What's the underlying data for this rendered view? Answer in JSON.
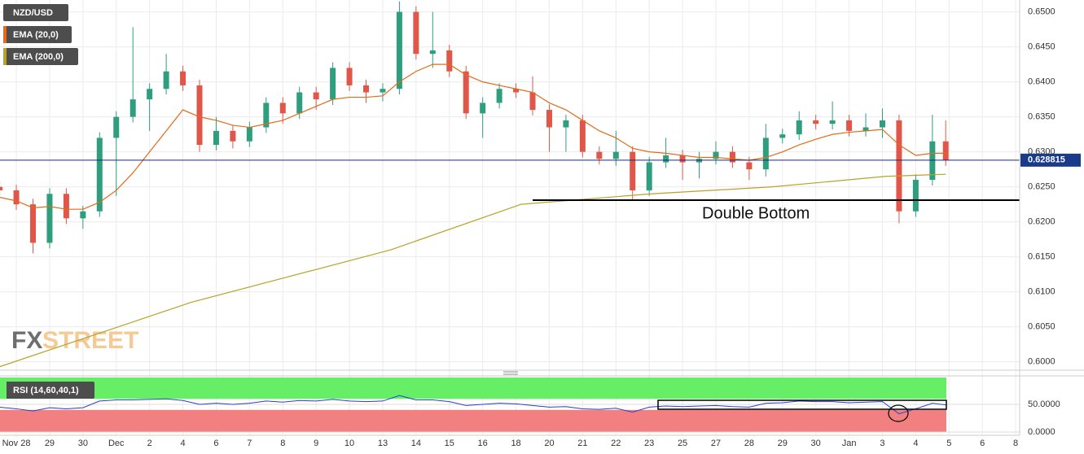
{
  "chart_data": {
    "type": "candlestick",
    "symbol": "NZD/USD",
    "grid": true,
    "x_labels": [
      "Nov 28",
      "29",
      "30",
      "Dec",
      "2",
      "4",
      "6",
      "7",
      "8",
      "9",
      "10",
      "13",
      "14",
      "15",
      "16",
      "18",
      "20",
      "21",
      "22",
      "23",
      "25",
      "27",
      "28",
      "29",
      "30",
      "Jan",
      "3",
      "4",
      "5",
      "6",
      "8"
    ],
    "xlim": [
      -0.49,
      30.12
    ],
    "ylim": [
      0.5988,
      0.6517
    ],
    "yticks": [
      {
        "value": 0.65,
        "label": "0.6500"
      },
      {
        "value": 0.645,
        "label": "0.6450"
      },
      {
        "value": 0.64,
        "label": "0.6400"
      },
      {
        "value": 0.635,
        "label": "0.6350"
      },
      {
        "value": 0.63,
        "label": "0.6300"
      },
      {
        "value": 0.625,
        "label": "0.6250"
      },
      {
        "value": 0.62,
        "label": "0.6200"
      },
      {
        "value": 0.615,
        "label": "0.6150"
      },
      {
        "value": 0.61,
        "label": "0.6100"
      },
      {
        "value": 0.605,
        "label": "0.6050"
      },
      {
        "value": 0.6,
        "label": "0.6000"
      }
    ],
    "candles": {
      "up_color": "#2e9e7e",
      "down_color": "#e0574a",
      "x": [
        -0.5,
        0,
        0.5,
        1,
        1.5,
        2,
        2.5,
        3,
        3.5,
        4,
        4.5,
        5,
        5.5,
        6,
        6.5,
        7,
        7.5,
        8,
        8.5,
        9,
        9.5,
        10,
        10.5,
        11,
        11.5,
        12,
        12.5,
        13,
        13.5,
        14,
        14.5,
        15,
        15.5,
        16,
        16.5,
        17,
        17.5,
        18,
        18.5,
        19,
        19.5,
        20,
        20.5,
        21,
        21.5,
        22,
        22.5,
        23,
        23.5,
        24,
        24.5,
        25,
        25.5,
        26,
        26.5,
        27,
        27.5,
        27.9
      ],
      "open": [
        0.625,
        0.6245,
        0.6225,
        0.617,
        0.624,
        0.6205,
        0.6215,
        0.632,
        0.635,
        0.6375,
        0.639,
        0.6415,
        0.6395,
        0.631,
        0.633,
        0.6315,
        0.6335,
        0.637,
        0.6355,
        0.6385,
        0.6375,
        0.642,
        0.6395,
        0.6385,
        0.639,
        0.65,
        0.644,
        0.6445,
        0.6415,
        0.6355,
        0.637,
        0.639,
        0.6385,
        0.636,
        0.6335,
        0.6345,
        0.63,
        0.629,
        0.63,
        0.6245,
        0.6285,
        0.6295,
        0.6285,
        0.629,
        0.63,
        0.6285,
        0.6275,
        0.632,
        0.6325,
        0.6345,
        0.634,
        0.6345,
        0.633,
        0.6335,
        0.6345,
        0.6215,
        0.626,
        0.6315
      ],
      "high": [
        0.6258,
        0.6253,
        0.6233,
        0.6248,
        0.6248,
        0.6223,
        0.6328,
        0.6358,
        0.6478,
        0.6398,
        0.644,
        0.6423,
        0.6403,
        0.635,
        0.6338,
        0.6343,
        0.6378,
        0.6378,
        0.6393,
        0.6393,
        0.6428,
        0.6428,
        0.6403,
        0.6398,
        0.6515,
        0.6508,
        0.65,
        0.6453,
        0.6423,
        0.6378,
        0.6398,
        0.6398,
        0.6408,
        0.6368,
        0.6353,
        0.6353,
        0.6308,
        0.633,
        0.6308,
        0.6293,
        0.632,
        0.6303,
        0.63,
        0.6315,
        0.6308,
        0.6293,
        0.634,
        0.6333,
        0.6358,
        0.6353,
        0.6372,
        0.6353,
        0.6355,
        0.6362,
        0.6353,
        0.6268,
        0.6353,
        0.6345
      ],
      "low": [
        0.6237,
        0.6217,
        0.6155,
        0.6162,
        0.6197,
        0.619,
        0.6207,
        0.6237,
        0.6342,
        0.633,
        0.6382,
        0.6387,
        0.63,
        0.6302,
        0.6305,
        0.6307,
        0.6327,
        0.634,
        0.6347,
        0.636,
        0.6367,
        0.6387,
        0.637,
        0.6372,
        0.6382,
        0.6432,
        0.642,
        0.6407,
        0.6347,
        0.632,
        0.6362,
        0.6377,
        0.6352,
        0.63,
        0.63,
        0.6292,
        0.6282,
        0.628,
        0.6232,
        0.6237,
        0.6277,
        0.626,
        0.6262,
        0.6282,
        0.6277,
        0.626,
        0.6265,
        0.6312,
        0.6317,
        0.6332,
        0.6332,
        0.6322,
        0.6322,
        0.632,
        0.6198,
        0.6207,
        0.6252,
        0.628
      ],
      "close": [
        0.6245,
        0.6225,
        0.617,
        0.624,
        0.6205,
        0.6215,
        0.632,
        0.635,
        0.6375,
        0.639,
        0.6415,
        0.6395,
        0.631,
        0.633,
        0.6315,
        0.6335,
        0.637,
        0.6355,
        0.6385,
        0.6375,
        0.642,
        0.6395,
        0.6385,
        0.639,
        0.65,
        0.644,
        0.6445,
        0.6415,
        0.6355,
        0.637,
        0.639,
        0.6385,
        0.636,
        0.6335,
        0.6345,
        0.63,
        0.629,
        0.63,
        0.6245,
        0.6285,
        0.6295,
        0.6285,
        0.629,
        0.63,
        0.6285,
        0.6275,
        0.632,
        0.6325,
        0.6345,
        0.634,
        0.6345,
        0.633,
        0.6335,
        0.6345,
        0.6215,
        0.626,
        0.6315,
        0.6288
      ]
    },
    "series": [
      {
        "name": "EMA (20,0)",
        "color": "#e06b1a",
        "x": [
          -0.5,
          0,
          0.5,
          1,
          1.5,
          2,
          2.5,
          3,
          3.5,
          4,
          4.5,
          5,
          5.5,
          6,
          6.5,
          7,
          7.5,
          8,
          8.5,
          9,
          9.5,
          10,
          10.5,
          11,
          11.5,
          12,
          12.5,
          13,
          13.5,
          14,
          14.5,
          15,
          15.5,
          16,
          16.5,
          17,
          17.5,
          18,
          18.5,
          19,
          19.5,
          20,
          20.5,
          21,
          21.5,
          22,
          22.5,
          23,
          23.5,
          24,
          24.5,
          25,
          25.5,
          26,
          26.5,
          27,
          27.5,
          27.9
        ],
        "values": [
          0.6235,
          0.623,
          0.622,
          0.6222,
          0.6218,
          0.6218,
          0.6228,
          0.6245,
          0.627,
          0.63,
          0.633,
          0.636,
          0.635,
          0.6345,
          0.6338,
          0.6335,
          0.634,
          0.6345,
          0.6355,
          0.6365,
          0.6375,
          0.6378,
          0.6378,
          0.638,
          0.64,
          0.6415,
          0.6425,
          0.6425,
          0.641,
          0.64,
          0.6395,
          0.639,
          0.6385,
          0.637,
          0.636,
          0.6345,
          0.633,
          0.632,
          0.6305,
          0.63,
          0.6298,
          0.6295,
          0.6292,
          0.6292,
          0.629,
          0.6288,
          0.6292,
          0.63,
          0.631,
          0.6318,
          0.6325,
          0.6328,
          0.633,
          0.6332,
          0.631,
          0.6295,
          0.6298,
          0.6298
        ]
      },
      {
        "name": "EMA (200,0)",
        "color": "#b8a32a",
        "x": [
          -0.5,
          5.25,
          11.24,
          15.15,
          19.06,
          22.7,
          26.1,
          27.9
        ],
        "values": [
          0.5993,
          0.6085,
          0.616,
          0.6225,
          0.624,
          0.625,
          0.6265,
          0.6268
        ]
      }
    ],
    "last_price": 0.628815,
    "annotation": {
      "text": "Double Bottom",
      "level": 0.6231,
      "x_start": 15.5
    },
    "watermark": [
      "FX",
      "STREET"
    ],
    "rsi": {
      "name": "RSI (14,60,40,1)",
      "color": "#2a3fd0",
      "ylim": [
        0,
        100
      ],
      "yticks": [
        {
          "value": 50,
          "label": "50.0000"
        },
        {
          "value": 0,
          "label": "0.0000"
        }
      ],
      "upper": 60,
      "lower": 40,
      "values": [
        45,
        42,
        38,
        44,
        42,
        44,
        56,
        58,
        58,
        59,
        60,
        57,
        50,
        52,
        50,
        52,
        56,
        54,
        57,
        56,
        59,
        56,
        55,
        56,
        66,
        58,
        58,
        55,
        48,
        50,
        52,
        51,
        48,
        45,
        46,
        42,
        41,
        43,
        36,
        45,
        47,
        46,
        47,
        48,
        46,
        45,
        52,
        53,
        56,
        55,
        55,
        53,
        54,
        55,
        33,
        42,
        52,
        49
      ]
    }
  }
}
